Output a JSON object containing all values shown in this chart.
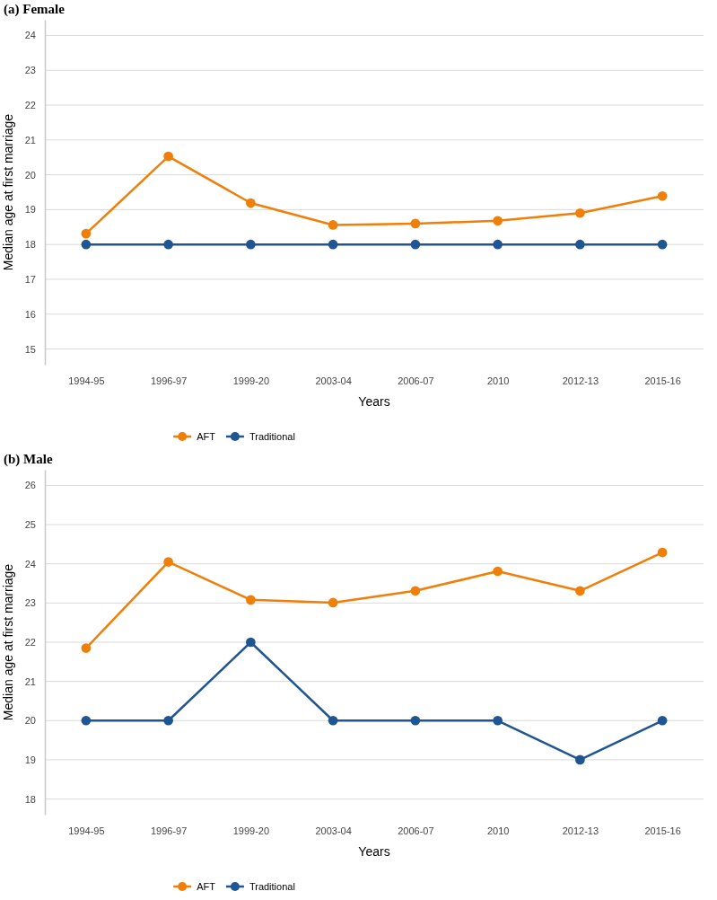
{
  "chart_data": [
    {
      "type": "line",
      "title": "(a)   Female",
      "xlabel": "Years",
      "ylabel": "Median age at first marriage",
      "categories": [
        "1994-95",
        "1996-97",
        "1999-20",
        "2003-04",
        "2006-07",
        "2010",
        "2012-13",
        "2015-16"
      ],
      "series": [
        {
          "name": "AFT",
          "color": "#f07f09",
          "values": [
            18.31,
            20.53,
            19.19,
            18.56,
            18.6,
            18.68,
            18.9,
            19.39
          ]
        },
        {
          "name": "Traditional",
          "color": "#1f5591",
          "values": [
            18,
            18,
            18,
            18,
            18,
            18,
            18,
            18
          ]
        }
      ],
      "ylim": [
        14.55,
        24.45
      ],
      "yticks": [
        15,
        16,
        17,
        18,
        19,
        20,
        21,
        22,
        23,
        24
      ],
      "grid": "y",
      "legend": "bottom",
      "marker": "circle",
      "line_style": "solid"
    },
    {
      "type": "line",
      "title": "(b)   Male",
      "xlabel": "Years",
      "ylabel": "Median age at first marriage",
      "categories": [
        "1994-95",
        "1996-97",
        "1999-20",
        "2003-04",
        "2006-07",
        "2010",
        "2012-13",
        "2015-16"
      ],
      "series": [
        {
          "name": "AFT",
          "color": "#f07f09",
          "values": [
            21.85,
            24.05,
            23.08,
            23.01,
            23.31,
            23.81,
            23.31,
            24.29
          ]
        },
        {
          "name": "Traditional",
          "color": "#1f5591",
          "values": [
            20,
            20,
            22,
            20,
            20,
            20,
            19,
            20
          ]
        }
      ],
      "ylim": [
        17.6,
        26.4
      ],
      "yticks": [
        18,
        19,
        20,
        21,
        22,
        23,
        24,
        25,
        26
      ],
      "grid": "y",
      "legend": "bottom",
      "marker": "circle",
      "line_style": "solid"
    }
  ]
}
